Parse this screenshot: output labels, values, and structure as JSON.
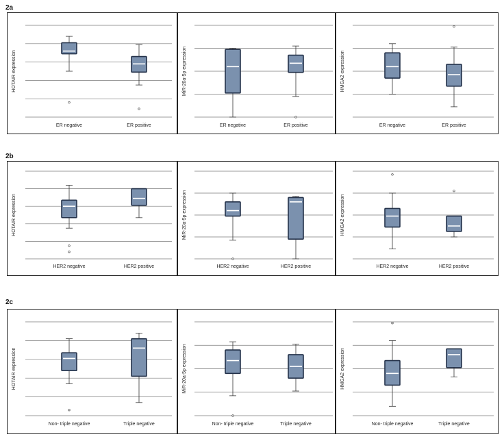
{
  "sections": [
    {
      "label": "2a"
    },
    {
      "label": "2b"
    },
    {
      "label": "2c"
    }
  ],
  "style": {
    "box_fill": "#7b91ae",
    "box_stroke": "#24324a",
    "median": "#ffffff",
    "grid": "#7a7a7a"
  },
  "chart_data": [
    {
      "type": "box",
      "ylabel": "HOTAIR expression",
      "categories": [
        "ER negative",
        "ER positive"
      ],
      "ylim": [
        0,
        5
      ],
      "boxes": [
        {
          "whisker_low": 2.5,
          "q1": 3.45,
          "median": 3.6,
          "q3": 4.05,
          "whisker_high": 4.4,
          "outliers": [
            0.8
          ]
        },
        {
          "whisker_low": 1.75,
          "q1": 2.45,
          "median": 2.9,
          "q3": 3.3,
          "whisker_high": 3.95,
          "outliers": [
            0.45
          ]
        }
      ]
    },
    {
      "type": "box",
      "ylabel": "MiR-20a-5p expression",
      "categories": [
        "ER negative",
        "ER positive"
      ],
      "ylim": [
        0,
        4
      ],
      "boxes": [
        {
          "whisker_low": 0.0,
          "q1": 1.05,
          "median": 2.2,
          "q3": 2.95,
          "whisker_high": 3.0,
          "outliers": []
        },
        {
          "whisker_low": 0.9,
          "q1": 1.95,
          "median": 2.35,
          "q3": 2.7,
          "whisker_high": 3.1,
          "outliers": [
            0.0
          ]
        }
      ]
    },
    {
      "type": "box",
      "ylabel": "HMGA2 expression",
      "categories": [
        "ER negative",
        "ER positive"
      ],
      "ylim": [
        0,
        4
      ],
      "boxes": [
        {
          "whisker_low": 1.0,
          "q1": 1.7,
          "median": 2.2,
          "q3": 2.8,
          "whisker_high": 3.2,
          "outliers": []
        },
        {
          "whisker_low": 0.45,
          "q1": 1.35,
          "median": 1.85,
          "q3": 2.3,
          "whisker_high": 3.05,
          "outliers": [
            3.95
          ]
        }
      ]
    },
    {
      "type": "box",
      "ylabel": "HOTAIR expression",
      "categories": [
        "HER2 negative",
        "HER2 positive"
      ],
      "ylim": [
        0,
        5
      ],
      "boxes": [
        {
          "whisker_low": 1.75,
          "q1": 2.35,
          "median": 3.0,
          "q3": 3.35,
          "whisker_high": 4.2,
          "outliers": [
            0.75,
            0.4
          ]
        },
        {
          "whisker_low": 2.35,
          "q1": 3.05,
          "median": 3.45,
          "q3": 4.0,
          "whisker_high": 4.0,
          "outliers": []
        }
      ]
    },
    {
      "type": "box",
      "ylabel": "MiR-20a-5p expression",
      "categories": [
        "HER2 negative",
        "HER2 positive"
      ],
      "ylim": [
        0,
        4
      ],
      "boxes": [
        {
          "whisker_low": 0.85,
          "q1": 1.95,
          "median": 2.2,
          "q3": 2.6,
          "whisker_high": 3.0,
          "outliers": [
            0.0
          ]
        },
        {
          "whisker_low": 0.0,
          "q1": 0.9,
          "median": 2.6,
          "q3": 2.8,
          "whisker_high": 2.85,
          "outliers": []
        }
      ]
    },
    {
      "type": "box",
      "ylabel": "HMGA2 expression",
      "categories": [
        "HER2 negative",
        "HER2 positive"
      ],
      "ylim": [
        0,
        4
      ],
      "boxes": [
        {
          "whisker_low": 0.45,
          "q1": 1.45,
          "median": 1.95,
          "q3": 2.3,
          "whisker_high": 3.0,
          "outliers": [
            3.85
          ]
        },
        {
          "whisker_low": 1.0,
          "q1": 1.25,
          "median": 1.5,
          "q3": 1.95,
          "whisker_high": 1.95,
          "outliers": [
            3.1
          ]
        }
      ]
    },
    {
      "type": "box",
      "ylabel": "HOTAIR expression",
      "categories": [
        "Non- triple negative",
        "Triple negative"
      ],
      "ylim": [
        0,
        5
      ],
      "boxes": [
        {
          "whisker_low": 1.7,
          "q1": 2.4,
          "median": 3.05,
          "q3": 3.35,
          "whisker_high": 4.1,
          "outliers": [
            0.3
          ]
        },
        {
          "whisker_low": 0.7,
          "q1": 2.1,
          "median": 3.6,
          "q3": 4.1,
          "whisker_high": 4.4,
          "outliers": []
        }
      ]
    },
    {
      "type": "box",
      "ylabel": "MiR-20a-5p expression",
      "categories": [
        "Non- triple negative",
        "Triple negative"
      ],
      "ylim": [
        0,
        4
      ],
      "boxes": [
        {
          "whisker_low": 0.85,
          "q1": 1.8,
          "median": 2.35,
          "q3": 2.8,
          "whisker_high": 3.15,
          "outliers": [
            0.0
          ]
        },
        {
          "whisker_low": 1.05,
          "q1": 1.6,
          "median": 2.1,
          "q3": 2.6,
          "whisker_high": 3.05,
          "outliers": []
        }
      ]
    },
    {
      "type": "box",
      "ylabel": "HMGA2 expression",
      "categories": [
        "Non- triple negative",
        "Triple negative"
      ],
      "ylim": [
        0,
        4
      ],
      "boxes": [
        {
          "whisker_low": 0.4,
          "q1": 1.3,
          "median": 1.8,
          "q3": 2.35,
          "whisker_high": 3.2,
          "outliers": [
            3.95
          ]
        },
        {
          "whisker_low": 1.65,
          "q1": 2.05,
          "median": 2.6,
          "q3": 2.85,
          "whisker_high": 2.85,
          "outliers": []
        }
      ]
    }
  ]
}
